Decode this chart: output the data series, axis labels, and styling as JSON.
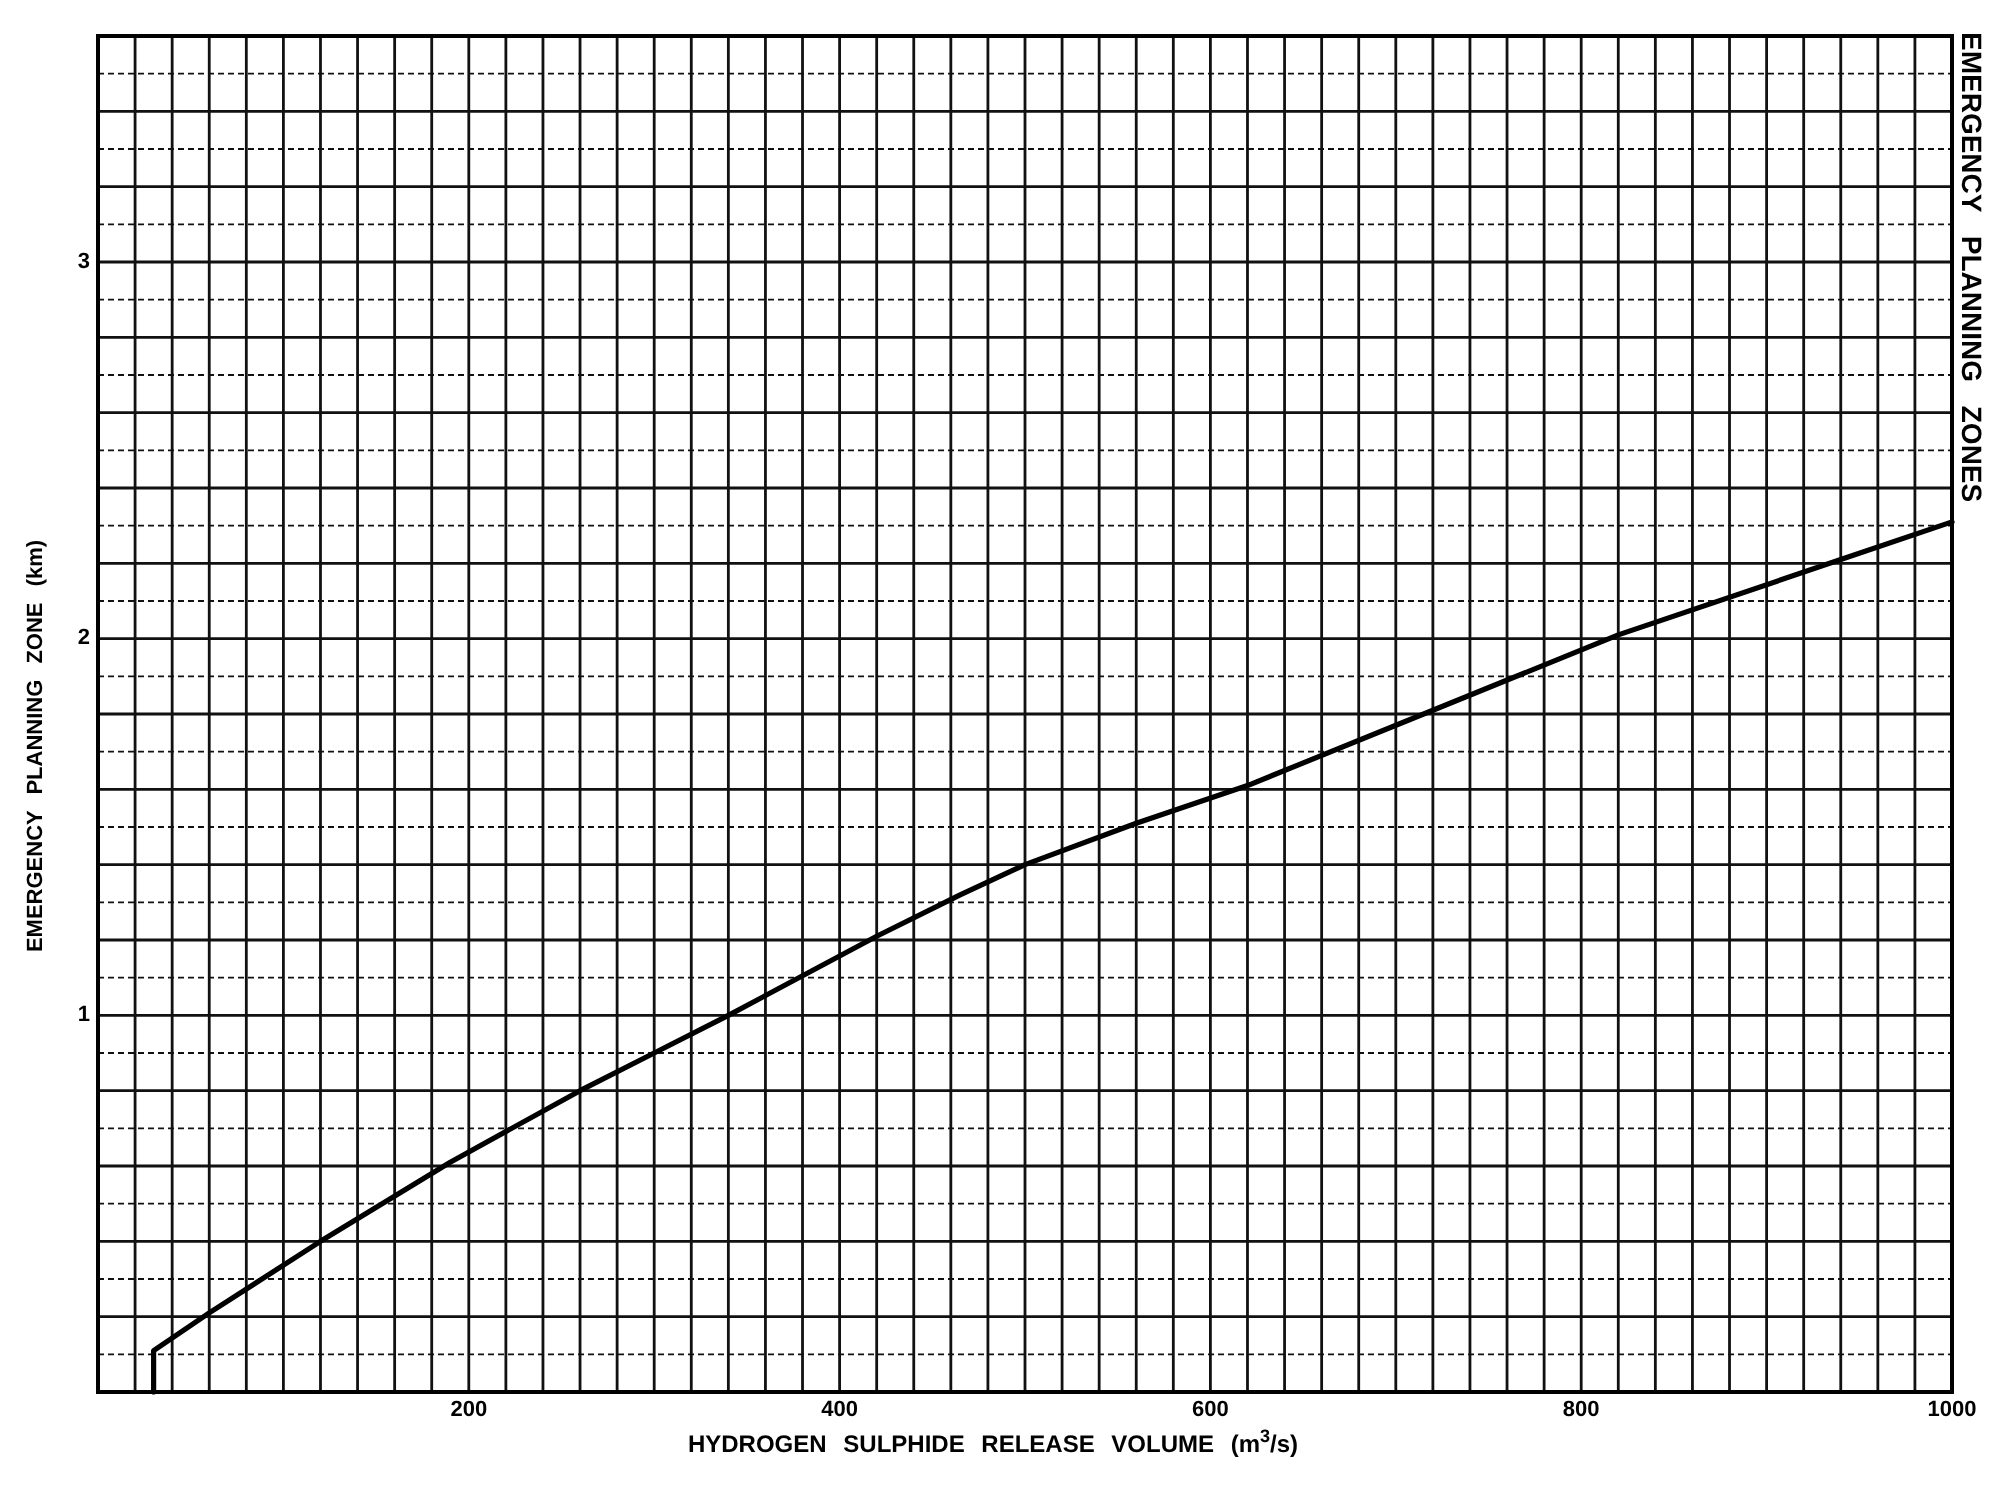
{
  "chart_data": {
    "type": "line",
    "title": "EMERGENCY PLANNING ZONES",
    "xlabel": "HYDROGEN SULPHIDE RELEASE VOLUME (m$^{3}$/s)",
    "ylabel": "EMERGENCY PLANNING ZONE (km)",
    "x": [
      30,
      30,
      60,
      120,
      190,
      260,
      300,
      340,
      420,
      465,
      500,
      560,
      620,
      720,
      820,
      940,
      1000
    ],
    "values": [
      0,
      0.11,
      0.21,
      0.4,
      0.61,
      0.8,
      0.9,
      1.0,
      1.21,
      1.32,
      1.4,
      1.51,
      1.61,
      1.81,
      2.01,
      2.21,
      2.31
    ],
    "color": "#000000",
    "xlim": [
      0,
      1000
    ],
    "xticks": [
      {
        "value": 20,
        "label": null
      },
      {
        "value": 40,
        "label": null
      },
      {
        "value": 60,
        "label": null
      },
      {
        "value": 80,
        "label": null
      },
      {
        "value": 100,
        "label": null
      },
      {
        "value": 120,
        "label": null
      },
      {
        "value": 140,
        "label": null
      },
      {
        "value": 160,
        "label": null
      },
      {
        "value": 180,
        "label": null
      },
      200,
      {
        "value": 220,
        "label": null
      },
      {
        "value": 240,
        "label": null
      },
      {
        "value": 260,
        "label": null
      },
      {
        "value": 280,
        "label": null
      },
      {
        "value": 300,
        "label": null
      },
      {
        "value": 320,
        "label": null
      },
      {
        "value": 340,
        "label": null
      },
      {
        "value": 360,
        "label": null
      },
      {
        "value": 380,
        "label": null
      },
      400,
      {
        "value": 420,
        "label": null
      },
      {
        "value": 440,
        "label": null
      },
      {
        "value": 460,
        "label": null
      },
      {
        "value": 480,
        "label": null
      },
      {
        "value": 500,
        "label": null
      },
      {
        "value": 520,
        "label": null
      },
      {
        "value": 540,
        "label": null
      },
      {
        "value": 560,
        "label": null
      },
      {
        "value": 580,
        "label": null
      },
      600,
      {
        "value": 620,
        "label": null
      },
      {
        "value": 640,
        "label": null
      },
      {
        "value": 660,
        "label": null
      },
      {
        "value": 680,
        "label": null
      },
      {
        "value": 700,
        "label": null
      },
      {
        "value": 720,
        "label": null
      },
      {
        "value": 740,
        "label": null
      },
      {
        "value": 760,
        "label": null
      },
      {
        "value": 780,
        "label": null
      },
      800,
      {
        "value": 820,
        "label": null
      },
      {
        "value": 840,
        "label": null
      },
      {
        "value": 860,
        "label": null
      },
      {
        "value": 880,
        "label": null
      },
      {
        "value": 900,
        "label": null
      },
      {
        "value": 920,
        "label": null
      },
      {
        "value": 940,
        "label": null
      },
      {
        "value": 960,
        "label": null
      },
      {
        "value": 980,
        "label": null
      },
      1000
    ],
    "ylim": [
      0,
      3.6
    ],
    "yticks": [
      {
        "value": 0.1,
        "label": null
      },
      {
        "value": 0.2,
        "label": null
      },
      {
        "value": 0.3,
        "label": null
      },
      {
        "value": 0.4,
        "label": null
      },
      {
        "value": 0.5,
        "label": null
      },
      {
        "value": 0.6,
        "label": null
      },
      {
        "value": 0.7,
        "label": null
      },
      {
        "value": 0.8,
        "label": null
      },
      {
        "value": 0.9,
        "label": null
      },
      1,
      {
        "value": 1.1,
        "label": null
      },
      {
        "value": 1.2,
        "label": null
      },
      {
        "value": 1.3,
        "label": null
      },
      {
        "value": 1.4,
        "label": null
      },
      {
        "value": 1.5,
        "label": null
      },
      {
        "value": 1.6,
        "label": null
      },
      {
        "value": 1.7,
        "label": null
      },
      {
        "value": 1.8,
        "label": null
      },
      {
        "value": 1.9,
        "label": null
      },
      2,
      {
        "value": 2.1,
        "label": null
      },
      {
        "value": 2.2,
        "label": null
      },
      {
        "value": 2.3,
        "label": null
      },
      {
        "value": 2.4,
        "label": null
      },
      {
        "value": 2.5,
        "label": null
      },
      {
        "value": 2.6,
        "label": null
      },
      {
        "value": 2.7,
        "label": null
      },
      {
        "value": 2.8,
        "label": null
      },
      {
        "value": 2.9,
        "label": null
      },
      3,
      {
        "value": 3.1,
        "label": null
      },
      {
        "value": 3.2,
        "label": null
      },
      {
        "value": 3.3,
        "label": null
      },
      {
        "value": 3.4,
        "label": null
      },
      {
        "value": 3.5,
        "label": null
      },
      {
        "value": 3.6,
        "label": null
      }
    ],
    "grid": true
  }
}
